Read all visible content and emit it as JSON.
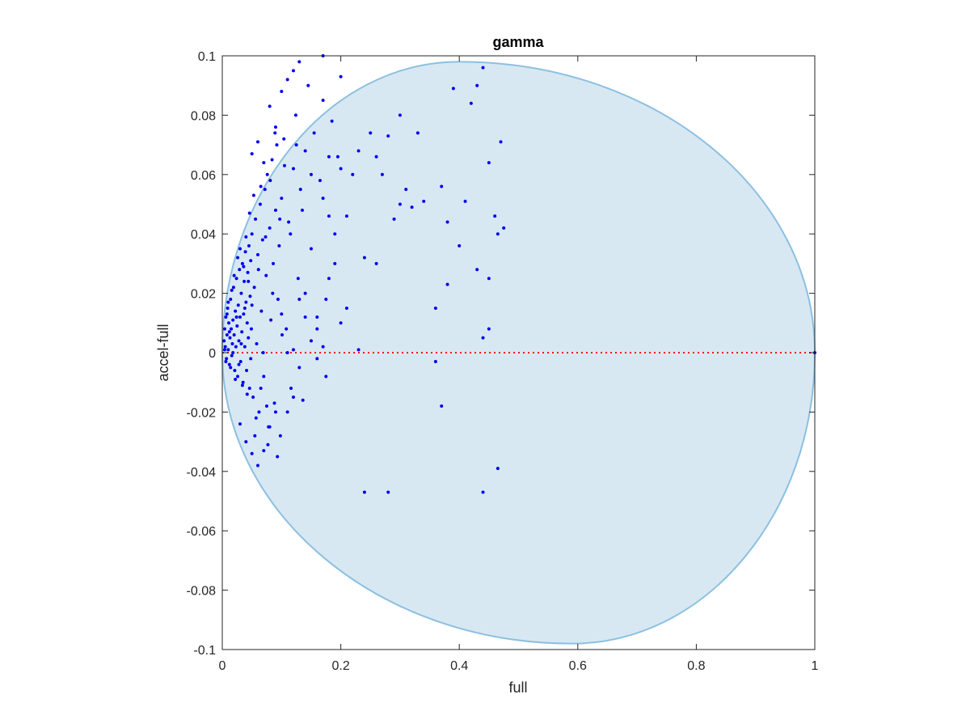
{
  "chart_data": {
    "type": "scatter",
    "title": "gamma",
    "xlabel": "full",
    "ylabel": "accel-full",
    "xlim": [
      0,
      1
    ],
    "ylim": [
      -0.1,
      0.1
    ],
    "xticks": [
      "0",
      "0.2",
      "0.4",
      "0.6",
      "0.8",
      "1"
    ],
    "xtick_values": [
      0,
      0.2,
      0.4,
      0.6,
      0.8,
      1
    ],
    "yticks": [
      "-0.1",
      "-0.08",
      "-0.06",
      "-0.04",
      "-0.02",
      "0",
      "0.02",
      "0.04",
      "0.06",
      "0.08",
      "0.1"
    ],
    "ytick_values": [
      -0.1,
      -0.08,
      -0.06,
      -0.04,
      -0.02,
      0,
      0.02,
      0.04,
      0.06,
      0.08,
      0.1
    ],
    "grid": false,
    "colors": {
      "points": "#0000ee",
      "region_fill": "#d8e8f3",
      "region_edge": "#8cc0e0",
      "zero_line": "#ff0000",
      "axes": "#262626"
    },
    "reference_line": {
      "y": 0,
      "style": "dotted",
      "color": "#ff0000"
    },
    "region": {
      "shape": "ellipse",
      "x_range": [
        0,
        1
      ],
      "y_range": [
        -0.098,
        0.098
      ],
      "peak_x": 0.4,
      "peak_top": 0.098,
      "trough_x": 0.59,
      "trough_bottom": -0.098
    },
    "series": [
      {
        "values": [
          [
            1.0,
            0.0
          ],
          [
            0.003,
            0.004
          ],
          [
            0.004,
            0.008
          ],
          [
            0.005,
            0.002
          ],
          [
            0.006,
            0.012
          ],
          [
            0.007,
            -0.002
          ],
          [
            0.008,
            0.006
          ],
          [
            0.009,
            0.015
          ],
          [
            0.01,
            0.001
          ],
          [
            0.011,
            0.01
          ],
          [
            0.012,
            -0.004
          ],
          [
            0.013,
            0.005
          ],
          [
            0.014,
            0.018
          ],
          [
            0.015,
            0.008
          ],
          [
            0.016,
            -0.001
          ],
          [
            0.017,
            0.003
          ],
          [
            0.018,
            0.011
          ],
          [
            0.019,
            0.022
          ],
          [
            0.02,
            0.006
          ],
          [
            0.021,
            -0.006
          ],
          [
            0.022,
            0.014
          ],
          [
            0.023,
            0.002
          ],
          [
            0.024,
            0.025
          ],
          [
            0.025,
            0.009
          ],
          [
            0.026,
            -0.008
          ],
          [
            0.027,
            0.016
          ],
          [
            0.028,
            0.004
          ],
          [
            0.029,
            0.028
          ],
          [
            0.03,
            0.012
          ],
          [
            0.031,
            -0.003
          ],
          [
            0.032,
            0.02
          ],
          [
            0.033,
            0.007
          ],
          [
            0.034,
            0.03
          ],
          [
            0.035,
            -0.01
          ],
          [
            0.036,
            0.013
          ],
          [
            0.037,
            0.024
          ],
          [
            0.038,
            0.002
          ],
          [
            0.039,
            0.034
          ],
          [
            0.04,
            0.017
          ],
          [
            0.041,
            -0.006
          ],
          [
            0.042,
            0.01
          ],
          [
            0.043,
            0.027
          ],
          [
            0.044,
            0.005
          ],
          [
            0.045,
            0.036
          ],
          [
            0.046,
            -0.012
          ],
          [
            0.047,
            0.019
          ],
          [
            0.048,
            0.031
          ],
          [
            0.049,
            0.008
          ],
          [
            0.05,
            0.04
          ],
          [
            0.052,
            -0.015
          ],
          [
            0.054,
            0.022
          ],
          [
            0.056,
            0.045
          ],
          [
            0.058,
            0.003
          ],
          [
            0.06,
            0.033
          ],
          [
            0.062,
            -0.02
          ],
          [
            0.064,
            0.05
          ],
          [
            0.066,
            0.014
          ],
          [
            0.068,
            0.038
          ],
          [
            0.07,
            -0.008
          ],
          [
            0.072,
            0.055
          ],
          [
            0.074,
            0.026
          ],
          [
            0.076,
            0.06
          ],
          [
            0.078,
            -0.025
          ],
          [
            0.08,
            0.042
          ],
          [
            0.082,
            0.011
          ],
          [
            0.084,
            0.065
          ],
          [
            0.086,
            0.03
          ],
          [
            0.088,
            -0.017
          ],
          [
            0.09,
            0.048
          ],
          [
            0.092,
            0.07
          ],
          [
            0.094,
            0.018
          ],
          [
            0.096,
            0.036
          ],
          [
            0.098,
            -0.028
          ],
          [
            0.1,
            0.052
          ],
          [
            0.104,
            0.072
          ],
          [
            0.108,
            0.008
          ],
          [
            0.112,
            0.044
          ],
          [
            0.116,
            -0.012
          ],
          [
            0.12,
            0.062
          ],
          [
            0.124,
            0.08
          ],
          [
            0.128,
            0.025
          ],
          [
            0.132,
            0.055
          ],
          [
            0.136,
            -0.016
          ],
          [
            0.14,
            0.068
          ],
          [
            0.145,
            0.09
          ],
          [
            0.15,
            0.035
          ],
          [
            0.155,
            0.074
          ],
          [
            0.16,
            0.012
          ],
          [
            0.165,
            0.058
          ],
          [
            0.17,
            0.085
          ],
          [
            0.175,
            -0.008
          ],
          [
            0.18,
            0.046
          ],
          [
            0.185,
            0.078
          ],
          [
            0.19,
            0.03
          ],
          [
            0.195,
            0.066
          ],
          [
            0.2,
            0.093
          ],
          [
            0.004,
            0.001
          ],
          [
            0.006,
            -0.003
          ],
          [
            0.008,
            0.013
          ],
          [
            0.01,
            0.017
          ],
          [
            0.012,
            0.007
          ],
          [
            0.014,
            -0.005
          ],
          [
            0.016,
            0.021
          ],
          [
            0.018,
            0.0
          ],
          [
            0.02,
            0.026
          ],
          [
            0.022,
            -0.009
          ],
          [
            0.024,
            0.012
          ],
          [
            0.026,
            0.032
          ],
          [
            0.028,
            -0.004
          ],
          [
            0.03,
            0.035
          ],
          [
            0.032,
            0.003
          ],
          [
            0.034,
            -0.011
          ],
          [
            0.036,
            0.029
          ],
          [
            0.038,
            0.015
          ],
          [
            0.04,
            0.039
          ],
          [
            0.042,
            -0.014
          ],
          [
            0.044,
            0.024
          ],
          [
            0.046,
            0.047
          ],
          [
            0.048,
            -0.002
          ],
          [
            0.05,
            0.016
          ],
          [
            0.053,
            0.053
          ],
          [
            0.057,
            -0.022
          ],
          [
            0.061,
            0.028
          ],
          [
            0.065,
            0.056
          ],
          [
            0.069,
            0.0
          ],
          [
            0.073,
            0.039
          ],
          [
            0.077,
            -0.031
          ],
          [
            0.081,
            0.058
          ],
          [
            0.085,
            0.02
          ],
          [
            0.089,
            0.074
          ],
          [
            0.093,
            -0.035
          ],
          [
            0.097,
            0.045
          ],
          [
            0.101,
            0.006
          ],
          [
            0.105,
            0.063
          ],
          [
            0.11,
            -0.02
          ],
          [
            0.115,
            0.04
          ],
          [
            0.12,
            0.001
          ],
          [
            0.125,
            0.07
          ],
          [
            0.13,
            -0.005
          ],
          [
            0.135,
            0.048
          ],
          [
            0.14,
            0.02
          ],
          [
            0.15,
            0.06
          ],
          [
            0.16,
            -0.002
          ],
          [
            0.17,
            0.052
          ],
          [
            0.175,
            0.018
          ],
          [
            0.18,
            0.066
          ],
          [
            0.19,
            0.04
          ],
          [
            0.2,
            0.062
          ],
          [
            0.21,
            0.046
          ],
          [
            0.22,
            0.06
          ],
          [
            0.23,
            0.068
          ],
          [
            0.24,
            0.032
          ],
          [
            0.25,
            0.074
          ],
          [
            0.26,
            0.066
          ],
          [
            0.27,
            0.06
          ],
          [
            0.28,
            0.073
          ],
          [
            0.29,
            0.045
          ],
          [
            0.3,
            0.08
          ],
          [
            0.31,
            0.055
          ],
          [
            0.32,
            0.049
          ],
          [
            0.33,
            0.074
          ],
          [
            0.34,
            0.051
          ],
          [
            0.36,
            0.015
          ],
          [
            0.37,
            0.056
          ],
          [
            0.38,
            0.044
          ],
          [
            0.39,
            0.089
          ],
          [
            0.4,
            0.036
          ],
          [
            0.41,
            0.051
          ],
          [
            0.42,
            0.084
          ],
          [
            0.43,
            0.09
          ],
          [
            0.44,
            0.096
          ],
          [
            0.45,
            0.064
          ],
          [
            0.46,
            0.046
          ],
          [
            0.47,
            0.071
          ],
          [
            0.475,
            0.042
          ],
          [
            0.465,
            0.04
          ],
          [
            0.38,
            0.023
          ],
          [
            0.43,
            0.028
          ],
          [
            0.45,
            0.025
          ],
          [
            0.45,
            0.008
          ],
          [
            0.44,
            0.005
          ],
          [
            0.36,
            -0.003
          ],
          [
            0.37,
            -0.018
          ],
          [
            0.24,
            -0.047
          ],
          [
            0.28,
            -0.047
          ],
          [
            0.44,
            -0.047
          ],
          [
            0.465,
            -0.039
          ],
          [
            0.23,
            0.001
          ],
          [
            0.21,
            0.015
          ],
          [
            0.26,
            0.03
          ],
          [
            0.3,
            0.05
          ],
          [
            0.05,
            -0.034
          ],
          [
            0.06,
            -0.038
          ],
          [
            0.07,
            -0.033
          ],
          [
            0.08,
            -0.025
          ],
          [
            0.09,
            -0.02
          ],
          [
            0.03,
            -0.024
          ],
          [
            0.04,
            -0.03
          ],
          [
            0.055,
            -0.028
          ],
          [
            0.065,
            -0.012
          ],
          [
            0.075,
            -0.018
          ],
          [
            0.1,
            0.013
          ],
          [
            0.11,
            0.0
          ],
          [
            0.14,
            0.012
          ],
          [
            0.16,
            0.008
          ],
          [
            0.12,
            -0.015
          ],
          [
            0.13,
            0.018
          ],
          [
            0.15,
            0.004
          ],
          [
            0.17,
            0.002
          ],
          [
            0.18,
            0.025
          ],
          [
            0.2,
            0.01
          ],
          [
            0.17,
            0.1
          ],
          [
            0.13,
            0.098
          ],
          [
            0.11,
            0.092
          ],
          [
            0.12,
            0.095
          ],
          [
            0.1,
            0.088
          ],
          [
            0.08,
            0.083
          ],
          [
            0.09,
            0.076
          ],
          [
            0.06,
            0.071
          ],
          [
            0.07,
            0.064
          ],
          [
            0.05,
            0.067
          ]
        ]
      }
    ]
  }
}
